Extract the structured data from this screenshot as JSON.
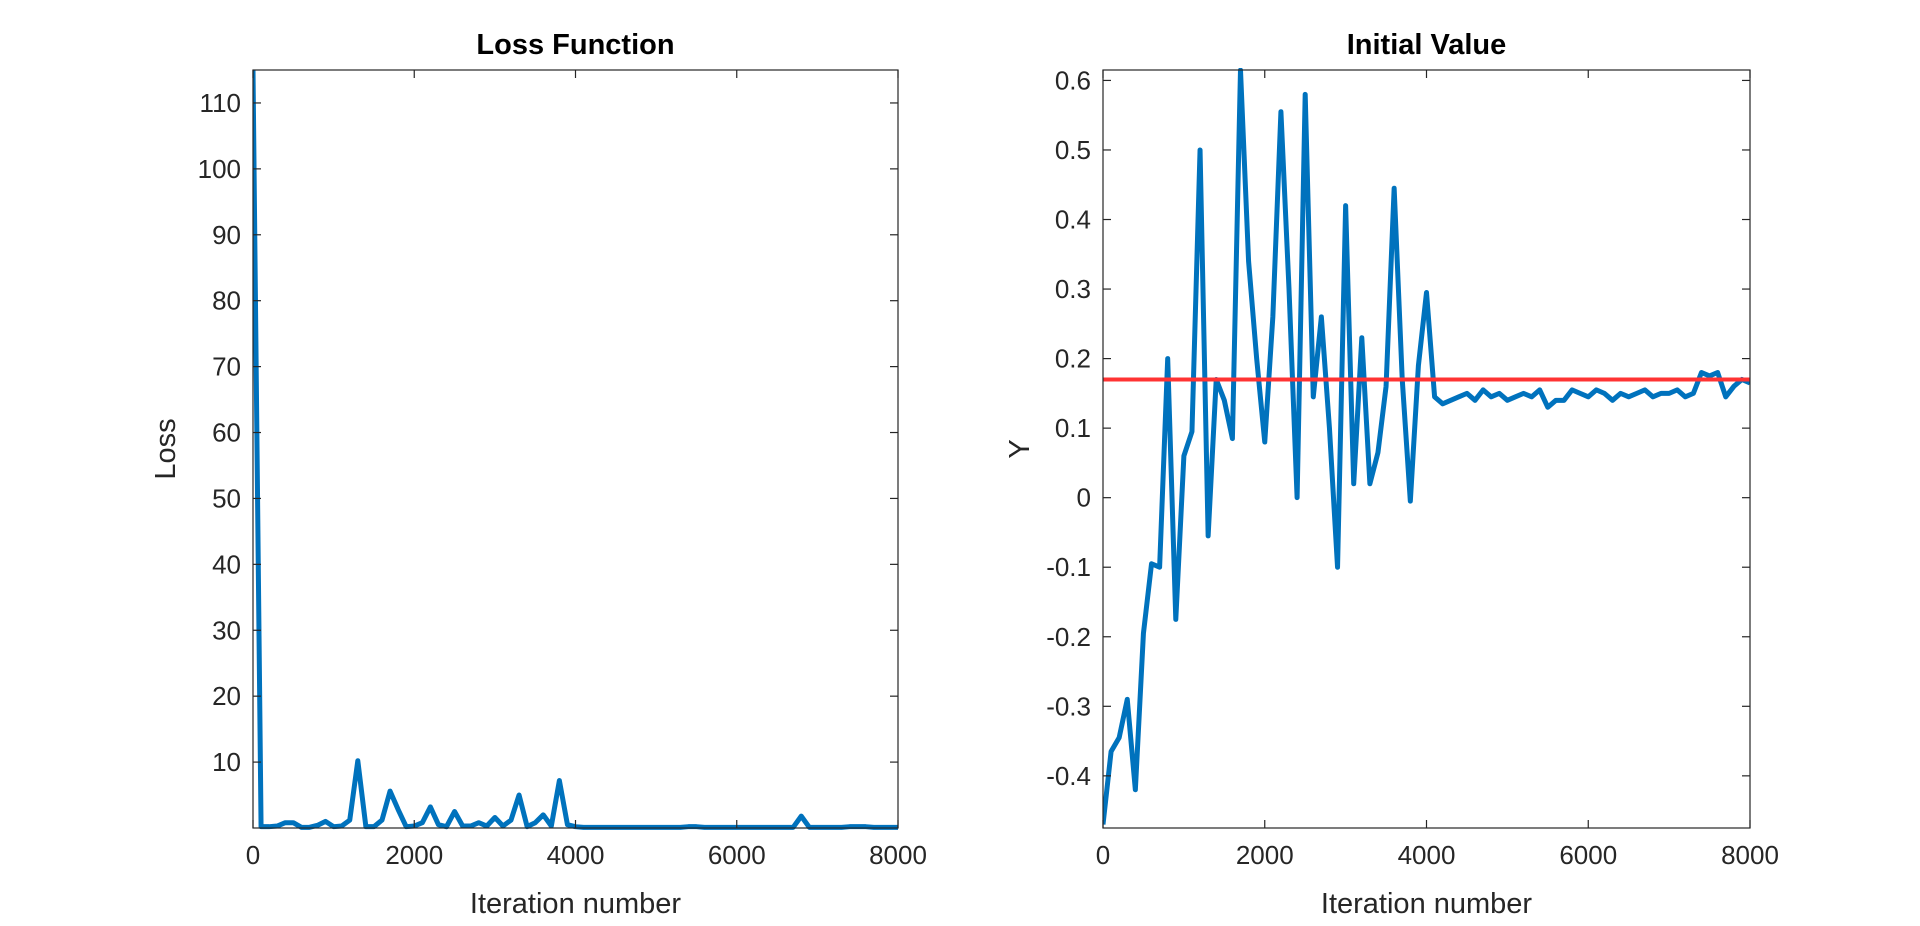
{
  "chart_data": [
    {
      "type": "line",
      "title": "Loss Function",
      "xlabel": "Iteration number",
      "ylabel": "Loss",
      "xlim": [
        0,
        8000
      ],
      "ylim": [
        0,
        115
      ],
      "xticks": [
        0,
        2000,
        4000,
        6000,
        8000
      ],
      "yticks": [
        10,
        20,
        30,
        40,
        50,
        60,
        70,
        80,
        90,
        100,
        110
      ],
      "xtick_labels": [
        "0",
        "2000",
        "4000",
        "6000",
        "8000"
      ],
      "ytick_labels": [
        "10",
        "20",
        "30",
        "40",
        "50",
        "60",
        "70",
        "80",
        "90",
        "100",
        "110"
      ],
      "grid": false,
      "series": [
        {
          "color": "#0072BD",
          "x": [
            0,
            100,
            200,
            300,
            400,
            500,
            600,
            700,
            800,
            900,
            1000,
            1100,
            1200,
            1300,
            1400,
            1500,
            1600,
            1700,
            1800,
            1900,
            2000,
            2100,
            2200,
            2300,
            2400,
            2500,
            2600,
            2700,
            2800,
            2900,
            3000,
            3100,
            3200,
            3300,
            3400,
            3500,
            3600,
            3700,
            3800,
            3900,
            4000,
            4100,
            4200,
            4300,
            4400,
            4500,
            4600,
            4700,
            4800,
            4900,
            5000,
            5100,
            5200,
            5300,
            5400,
            5500,
            5600,
            5700,
            5800,
            5900,
            6000,
            6100,
            6200,
            6300,
            6400,
            6500,
            6600,
            6700,
            6800,
            6900,
            7000,
            7100,
            7200,
            7300,
            7400,
            7500,
            7600,
            7700,
            7800,
            7900,
            8000
          ],
          "y": [
            115,
            0.2,
            0.2,
            0.3,
            0.8,
            0.8,
            0.1,
            0.1,
            0.4,
            1.0,
            0.2,
            0.3,
            1.2,
            10.2,
            0.2,
            0.2,
            1.2,
            5.6,
            2.8,
            0.2,
            0.3,
            0.8,
            3.2,
            0.5,
            0.2,
            2.5,
            0.3,
            0.3,
            0.8,
            0.3,
            1.6,
            0.3,
            1.2,
            5.0,
            0.2,
            0.8,
            2.0,
            0.3,
            7.2,
            0.5,
            0.2,
            0.1,
            0.1,
            0.1,
            0.1,
            0.1,
            0.1,
            0.1,
            0.1,
            0.1,
            0.1,
            0.1,
            0.1,
            0.1,
            0.2,
            0.2,
            0.1,
            0.1,
            0.1,
            0.1,
            0.1,
            0.1,
            0.1,
            0.1,
            0.1,
            0.1,
            0.1,
            0.1,
            1.8,
            0.1,
            0.1,
            0.1,
            0.1,
            0.1,
            0.2,
            0.2,
            0.2,
            0.1,
            0.1,
            0.1,
            0.1
          ]
        }
      ]
    },
    {
      "type": "line",
      "title": "Initial Value",
      "xlabel": "Iteration number",
      "ylabel": "Y",
      "xlim": [
        0,
        8000
      ],
      "ylim": [
        -0.475,
        0.615
      ],
      "xticks": [
        0,
        2000,
        4000,
        6000,
        8000
      ],
      "yticks": [
        -0.4,
        -0.3,
        -0.2,
        -0.1,
        0,
        0.1,
        0.2,
        0.3,
        0.4,
        0.5,
        0.6
      ],
      "xtick_labels": [
        "0",
        "2000",
        "4000",
        "6000",
        "8000"
      ],
      "ytick_labels": [
        "-0.4",
        "-0.3",
        "-0.2",
        "-0.1",
        "0",
        "0.1",
        "0.2",
        "0.3",
        "0.4",
        "0.5",
        "0.6"
      ],
      "grid": false,
      "reference_line": {
        "y": 0.17,
        "color": "#FF3333"
      },
      "series": [
        {
          "color": "#0072BD",
          "x": [
            0,
            100,
            200,
            300,
            400,
            500,
            600,
            700,
            800,
            900,
            1000,
            1100,
            1200,
            1300,
            1400,
            1500,
            1600,
            1700,
            1800,
            1900,
            2000,
            2100,
            2200,
            2300,
            2400,
            2500,
            2600,
            2700,
            2800,
            2900,
            3000,
            3100,
            3200,
            3300,
            3400,
            3500,
            3600,
            3700,
            3800,
            3900,
            4000,
            4100,
            4200,
            4300,
            4400,
            4500,
            4600,
            4700,
            4800,
            4900,
            5000,
            5100,
            5200,
            5300,
            5400,
            5500,
            5600,
            5700,
            5800,
            5900,
            6000,
            6100,
            6200,
            6300,
            6400,
            6500,
            6600,
            6700,
            6800,
            6900,
            7000,
            7100,
            7200,
            7300,
            7400,
            7500,
            7600,
            7700,
            7800,
            7900,
            8000
          ],
          "y": [
            -0.47,
            -0.365,
            -0.345,
            -0.29,
            -0.42,
            -0.195,
            -0.095,
            -0.1,
            0.2,
            -0.175,
            0.06,
            0.095,
            0.5,
            -0.055,
            0.17,
            0.14,
            0.085,
            0.615,
            0.34,
            0.2,
            0.08,
            0.26,
            0.555,
            0.3,
            0.0,
            0.58,
            0.145,
            0.26,
            0.1,
            -0.1,
            0.42,
            0.02,
            0.23,
            0.02,
            0.065,
            0.16,
            0.445,
            0.17,
            -0.005,
            0.19,
            0.295,
            0.145,
            0.135,
            0.14,
            0.145,
            0.15,
            0.14,
            0.155,
            0.145,
            0.15,
            0.14,
            0.145,
            0.15,
            0.145,
            0.155,
            0.13,
            0.14,
            0.14,
            0.155,
            0.15,
            0.145,
            0.155,
            0.15,
            0.14,
            0.15,
            0.145,
            0.15,
            0.155,
            0.145,
            0.15,
            0.15,
            0.155,
            0.145,
            0.15,
            0.18,
            0.175,
            0.18,
            0.145,
            0.16,
            0.17,
            0.165
          ]
        }
      ]
    }
  ]
}
